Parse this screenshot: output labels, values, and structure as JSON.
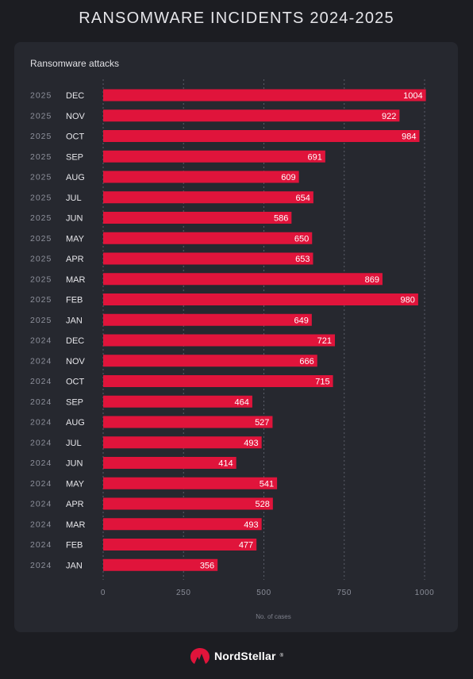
{
  "header": {
    "title": "RANSOMWARE INCIDENTS 2024-2025"
  },
  "colors": {
    "bar": "#e0143b",
    "background": "#1c1d22",
    "panel": "#26282f",
    "brand": "#e0143b"
  },
  "chart_data": {
    "type": "bar",
    "orientation": "horizontal",
    "subtitle": "Ransomware attacks",
    "xlabel": "No. of cases",
    "xlim": [
      0,
      1000
    ],
    "xticks": [
      0,
      250,
      500,
      750,
      1000
    ],
    "grid": "vertical dashed",
    "categories": [
      {
        "year": "2025",
        "month": "DEC"
      },
      {
        "year": "2025",
        "month": "NOV"
      },
      {
        "year": "2025",
        "month": "OCT"
      },
      {
        "year": "2025",
        "month": "SEP"
      },
      {
        "year": "2025",
        "month": "AUG"
      },
      {
        "year": "2025",
        "month": "JUL"
      },
      {
        "year": "2025",
        "month": "JUN"
      },
      {
        "year": "2025",
        "month": "MAY"
      },
      {
        "year": "2025",
        "month": "APR"
      },
      {
        "year": "2025",
        "month": "MAR"
      },
      {
        "year": "2025",
        "month": "FEB"
      },
      {
        "year": "2025",
        "month": "JAN"
      },
      {
        "year": "2024",
        "month": "DEC"
      },
      {
        "year": "2024",
        "month": "NOV"
      },
      {
        "year": "2024",
        "month": "OCT"
      },
      {
        "year": "2024",
        "month": "SEP"
      },
      {
        "year": "2024",
        "month": "AUG"
      },
      {
        "year": "2024",
        "month": "JUL"
      },
      {
        "year": "2024",
        "month": "JUN"
      },
      {
        "year": "2024",
        "month": "MAY"
      },
      {
        "year": "2024",
        "month": "APR"
      },
      {
        "year": "2024",
        "month": "MAR"
      },
      {
        "year": "2024",
        "month": "FEB"
      },
      {
        "year": "2024",
        "month": "JAN"
      }
    ],
    "values": [
      1004,
      922,
      984,
      691,
      609,
      654,
      586,
      650,
      653,
      869,
      980,
      649,
      721,
      666,
      715,
      464,
      527,
      493,
      414,
      541,
      528,
      493,
      477,
      356
    ]
  },
  "footer": {
    "brand": "NordStellar",
    "brand_mark": "®",
    "logo_icon": "nordstellar-mountain-logo-icon"
  }
}
